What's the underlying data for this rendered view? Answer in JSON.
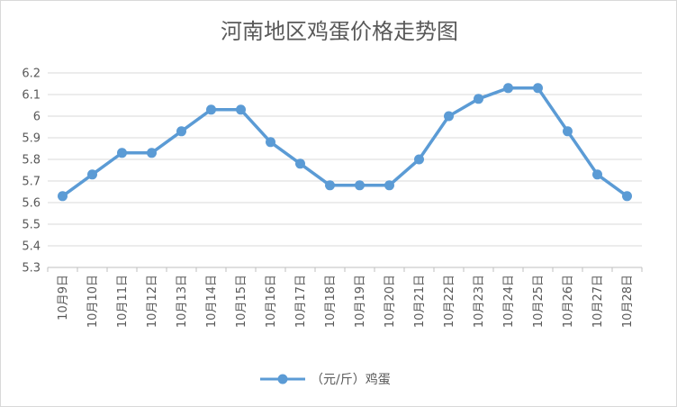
{
  "chart_data": {
    "type": "line",
    "title": "河南地区鸡蛋价格走势图",
    "categories": [
      "10月9日",
      "10月10日",
      "10月11日",
      "10月12日",
      "10月13日",
      "10月14日",
      "10月15日",
      "10月16日",
      "10月17日",
      "10月18日",
      "10月19日",
      "10月20日",
      "10月21日",
      "10月22日",
      "10月23日",
      "10月24日",
      "10月25日",
      "10月26日",
      "10月27日",
      "10月28日"
    ],
    "series": [
      {
        "name": "（元/斤）鸡蛋",
        "color": "#5b9bd5",
        "values": [
          5.63,
          5.73,
          5.83,
          5.83,
          5.93,
          6.03,
          6.03,
          5.88,
          5.78,
          5.68,
          5.68,
          5.68,
          5.8,
          6.0,
          6.08,
          6.13,
          6.13,
          5.93,
          5.73,
          5.63
        ]
      }
    ],
    "yticks": [
      "5.3",
      "5.4",
      "5.5",
      "5.6",
      "5.7",
      "5.8",
      "5.9",
      "6",
      "6.1",
      "6.2"
    ],
    "ylim": [
      5.3,
      6.2
    ],
    "grid": true,
    "legend_position": "bottom"
  }
}
